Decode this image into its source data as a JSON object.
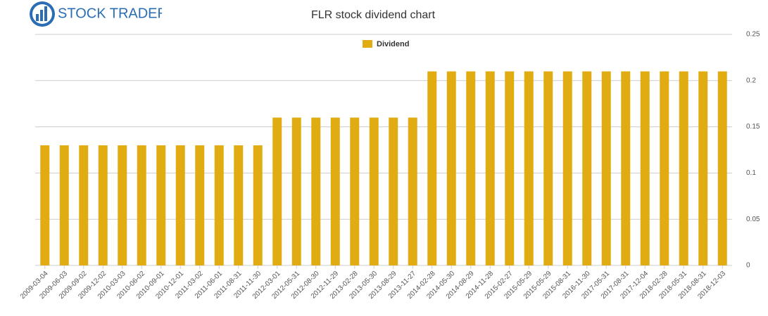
{
  "logo": "STOCK TRADERS",
  "chart_data": {
    "type": "bar",
    "title": "FLR stock dividend chart",
    "series": [
      {
        "name": "Dividend",
        "color": "#e0ac12",
        "values": [
          0.13,
          0.13,
          0.13,
          0.13,
          0.13,
          0.13,
          0.13,
          0.13,
          0.13,
          0.13,
          0.13,
          0.13,
          0.16,
          0.16,
          0.16,
          0.16,
          0.16,
          0.16,
          0.16,
          0.16,
          0.21,
          0.21,
          0.21,
          0.21,
          0.21,
          0.21,
          0.21,
          0.21,
          0.21,
          0.21,
          0.21,
          0.21,
          0.21,
          0.21,
          0.21,
          0.21
        ]
      }
    ],
    "categories": [
      "2009-03-04",
      "2009-06-03",
      "2009-09-02",
      "2009-12-02",
      "2010-03-03",
      "2010-06-02",
      "2010-09-01",
      "2010-12-01",
      "2011-03-02",
      "2011-06-01",
      "2011-08-31",
      "2011-11-30",
      "2012-03-01",
      "2012-05-31",
      "2012-08-30",
      "2012-11-29",
      "2013-02-28",
      "2013-05-30",
      "2013-08-29",
      "2013-11-27",
      "2014-02-28",
      "2014-05-30",
      "2014-08-29",
      "2014-11-28",
      "2015-02-27",
      "2015-05-29",
      "2015-05-29",
      "2015-08-31",
      "2016-11-30",
      "2017-05-31",
      "2017-08-31",
      "2017-12-04",
      "2018-02-28",
      "2018-05-31",
      "2018-08-31",
      "2018-12-03"
    ],
    "ylim": [
      0,
      0.25
    ],
    "yticks": [
      0,
      0.05,
      0.1,
      0.15,
      0.2,
      0.25
    ],
    "grid": true,
    "legend": "top"
  }
}
